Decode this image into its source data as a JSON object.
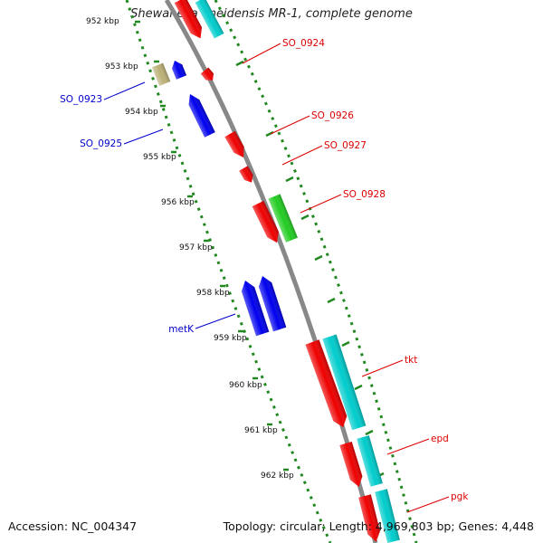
{
  "title": "Shewanella oneidensis MR-1, complete genome",
  "footer": {
    "accession_label": "Accession:",
    "accession": "NC_004347",
    "topology": "Topology: circular",
    "length": "Length: 4,969,803 bp",
    "genes": "Genes: 4,448"
  },
  "ticks": [
    "952 kbp",
    "953 kbp",
    "954 kbp",
    "955 kbp",
    "956 kbp",
    "957 kbp",
    "958 kbp",
    "959 kbp",
    "960 kbp",
    "961 kbp",
    "962 kbp"
  ],
  "gene_labels": [
    {
      "name": "SO_0923",
      "strand": "reverse",
      "color": "#0000cc"
    },
    {
      "name": "SO_0925",
      "strand": "reverse",
      "color": "#0000cc"
    },
    {
      "name": "metK",
      "strand": "reverse",
      "color": "#0000cc"
    },
    {
      "name": "SO_0924",
      "strand": "forward",
      "color": "#dd0000"
    },
    {
      "name": "SO_0926",
      "strand": "forward",
      "color": "#dd0000"
    },
    {
      "name": "SO_0927",
      "strand": "forward",
      "color": "#dd0000"
    },
    {
      "name": "SO_0928",
      "strand": "forward",
      "color": "#dd0000"
    },
    {
      "name": "tkt",
      "strand": "forward",
      "color": "#dd0000"
    },
    {
      "name": "epd",
      "strand": "forward",
      "color": "#dd0000"
    },
    {
      "name": "pgk",
      "strand": "forward",
      "color": "#dd0000"
    }
  ],
  "colors": {
    "forward_cds": "#ee0000",
    "reverse_cds": "#0000ee",
    "rna": "#22cc22",
    "other": "#00cccc",
    "pseudo": "#bbb077",
    "backbone": "#888888",
    "tick": "#228822"
  }
}
